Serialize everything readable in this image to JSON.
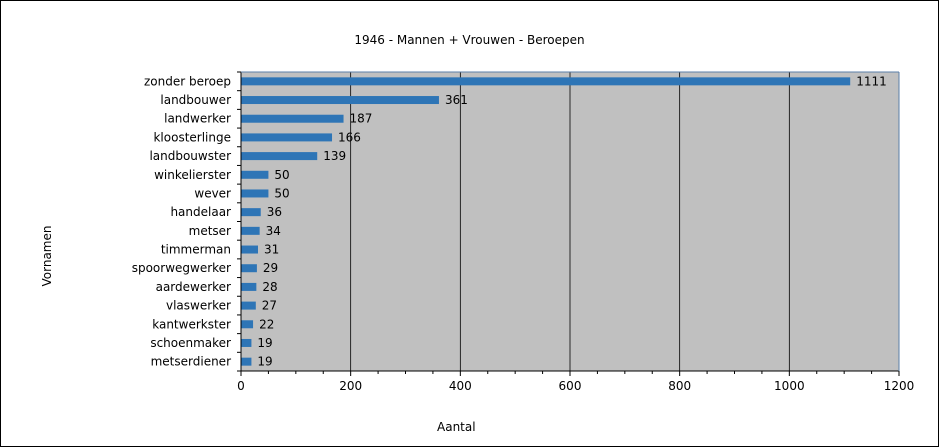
{
  "chart_data": {
    "type": "bar",
    "orientation": "horizontal",
    "title": "1946 - Mannen + Vrouwen - Beroepen",
    "xlabel": "Aantal",
    "ylabel": "Vornamen",
    "categories": [
      "zonder beroep",
      "landbouwer",
      "landwerker",
      "kloosterlinge",
      "landbouwster",
      "winkelierster",
      "wever",
      "handelaar",
      "metser",
      "timmerman",
      "spoorwegwerker",
      "aardewerker",
      "vlaswerker",
      "kantwerkster",
      "schoenmaker",
      "metserdiener"
    ],
    "values": [
      1111,
      361,
      187,
      166,
      139,
      50,
      50,
      36,
      34,
      31,
      29,
      28,
      27,
      22,
      19,
      19
    ],
    "xlim": [
      0,
      1200
    ],
    "xticks": [
      0,
      200,
      400,
      600,
      800,
      1000,
      1200
    ],
    "grid": true,
    "legend": "none",
    "colors": {
      "bar": "#2e75b6",
      "plot_background": "#c0c0c0",
      "gridline": "#000000"
    }
  }
}
